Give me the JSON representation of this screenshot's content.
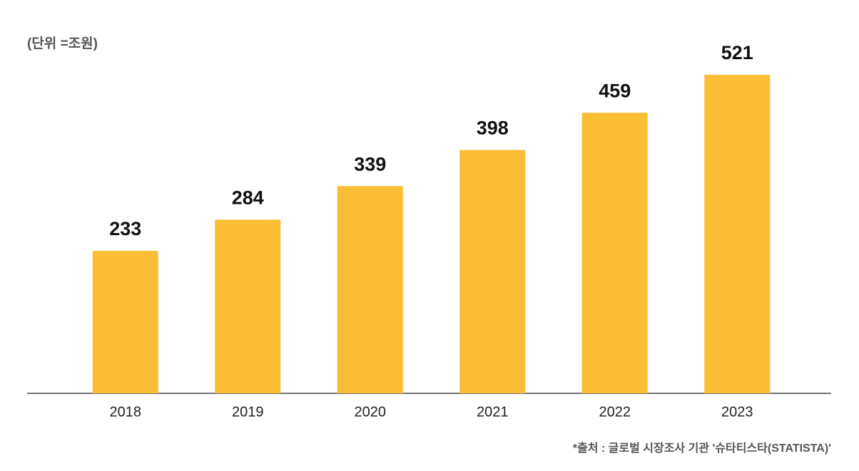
{
  "chart_data": {
    "type": "bar",
    "unit_note": "(단위 =조원)",
    "source": "*출처 : 글로벌 시장조사 기관 '슈타티스타(STATISTA)'",
    "categories": [
      "2018",
      "2019",
      "2020",
      "2021",
      "2022",
      "2023"
    ],
    "values": [
      233,
      284,
      339,
      398,
      459,
      521
    ],
    "color": "#f9be36"
  }
}
